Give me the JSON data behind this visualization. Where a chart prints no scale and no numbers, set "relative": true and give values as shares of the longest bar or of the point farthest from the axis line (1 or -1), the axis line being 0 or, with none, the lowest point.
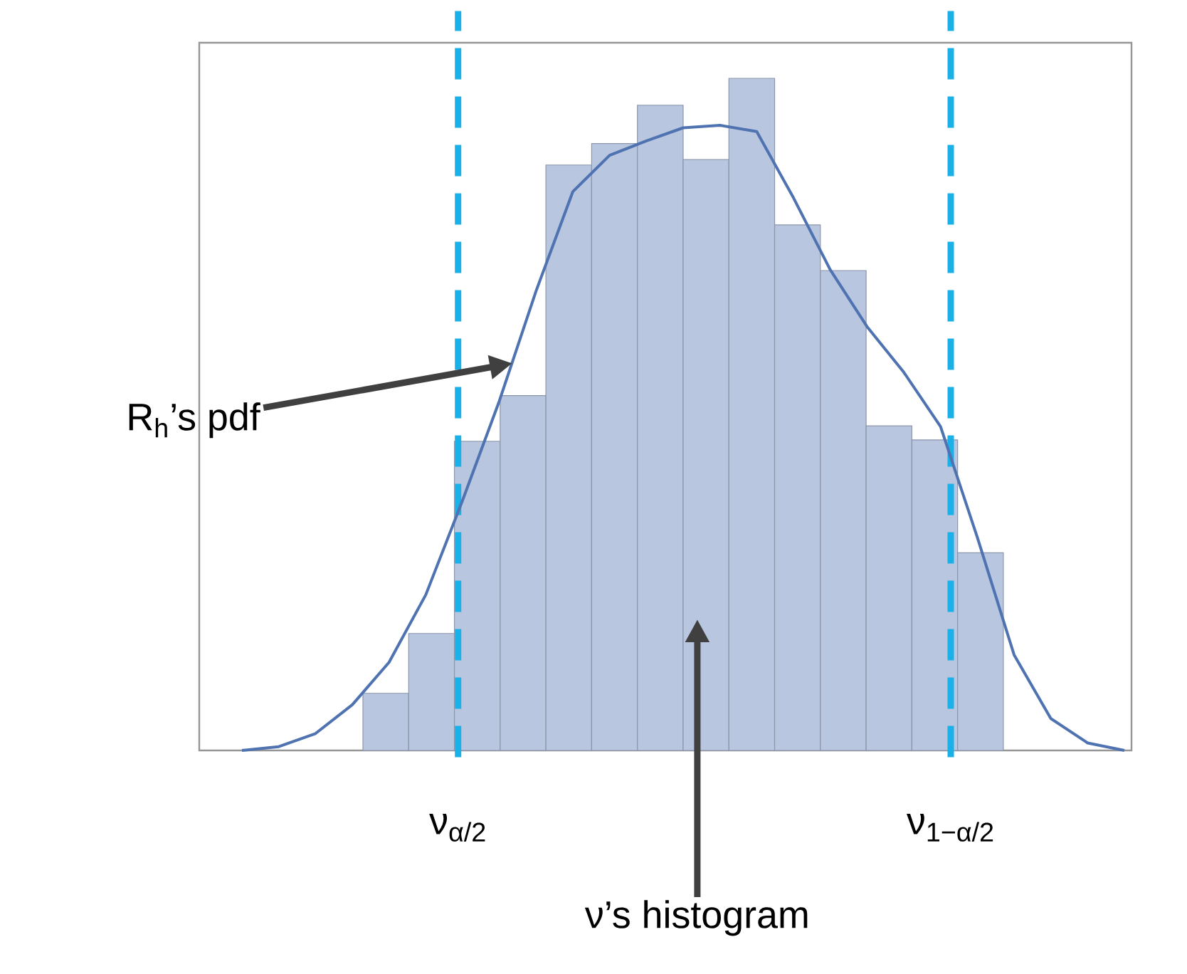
{
  "chart_data": [
    {
      "type": "bar",
      "relative": true,
      "categories": [
        null,
        null,
        null,
        null,
        null,
        null,
        null,
        null,
        null,
        null,
        null,
        null,
        null,
        null
      ],
      "series": [
        {
          "color": "#b8c6e0",
          "values": [
            0.085,
            0.174,
            0.46,
            0.528,
            0.871,
            0.903,
            0.96,
            0.879,
            1,
            0.782,
            0.714,
            0.483,
            0.462,
            0.294
          ]
        }
      ],
      "annotations": [
        "R$_{h}$’s pdf",
        "ν’s histogram",
        "ν$_{α/2}$",
        "ν$_{1−α/2}$"
      ]
    },
    {
      "type": "line",
      "relative": true,
      "categories": [
        null,
        null,
        null,
        null,
        null,
        null,
        null,
        null,
        null,
        null,
        null,
        null,
        null,
        null,
        null,
        null,
        null,
        null,
        null,
        null,
        null,
        null,
        null,
        null,
        null
      ],
      "series": [
        {
          "color": "#4f72b0",
          "values": [
            0,
            0.006,
            0.027,
            0.073,
            0.141,
            0.249,
            0.4,
            0.559,
            0.735,
            0.894,
            0.952,
            0.975,
            0.996,
            1,
            0.99,
            0.884,
            0.769,
            0.678,
            0.605,
            0.518,
            0.341,
            0.153,
            0.051,
            0.012,
            0
          ]
        }
      ],
      "marker": "none",
      "line_style": "solid"
    }
  ]
}
